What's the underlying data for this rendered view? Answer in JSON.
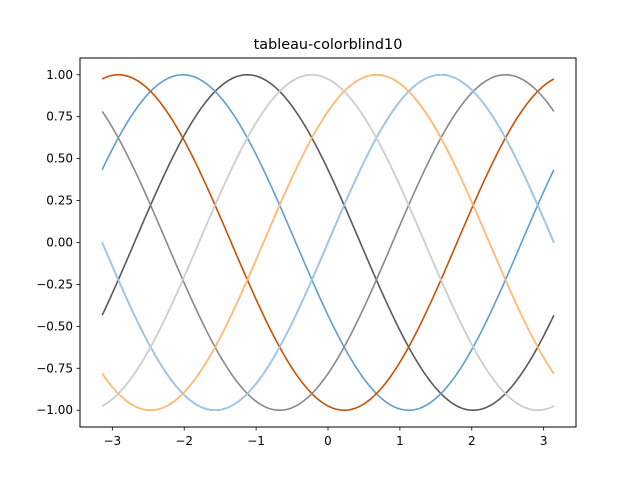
{
  "chart_data": {
    "type": "line",
    "title": "tableau-colorblind10",
    "xlabel": "",
    "ylabel": "",
    "xlim": [
      -3.45,
      3.45
    ],
    "ylim": [
      -1.1,
      1.1
    ],
    "xticks": [
      {
        "value": -3,
        "label": "−3"
      },
      {
        "value": -2,
        "label": "−2"
      },
      {
        "value": -1,
        "label": "−1"
      },
      {
        "value": 0,
        "label": "0"
      },
      {
        "value": 1,
        "label": "1"
      },
      {
        "value": 2,
        "label": "2"
      },
      {
        "value": 3,
        "label": "3"
      }
    ],
    "yticks": [
      {
        "value": -1.0,
        "label": "−1.00"
      },
      {
        "value": -0.75,
        "label": "−0.75"
      },
      {
        "value": -0.5,
        "label": "−0.50"
      },
      {
        "value": -0.25,
        "label": "−0.25"
      },
      {
        "value": 0.0,
        "label": "0.00"
      },
      {
        "value": 0.25,
        "label": "0.25"
      },
      {
        "value": 0.5,
        "label": "0.50"
      },
      {
        "value": 0.75,
        "label": "0.75"
      },
      {
        "value": 1.0,
        "label": "1.00"
      }
    ],
    "grid": false,
    "legend": false,
    "x_range": [
      -3.1416,
      3.1416
    ],
    "series": [
      {
        "function": "sin(x)",
        "color": "#006BA4"
      },
      {
        "function": "sin(x + 0.8976)",
        "color": "#FF800E"
      },
      {
        "function": "sin(x + 1.7952)",
        "color": "#ABABAB"
      },
      {
        "function": "sin(x + 2.6928)",
        "color": "#595959"
      },
      {
        "function": "sin(x + 3.5904)",
        "color": "#5F9ED1"
      },
      {
        "function": "sin(x + 4.4880)",
        "color": "#C85200"
      },
      {
        "function": "sin(x + 5.3856)",
        "color": "#898989"
      },
      {
        "function": "sin(x + 6.2832)",
        "color": "#A2C8EC"
      },
      {
        "function": "sin(x + 7.1808)",
        "color": "#FFBC79"
      },
      {
        "function": "sin(x + 8.0784)",
        "color": "#CFCFCF"
      }
    ],
    "series_samples": {
      "x": [
        -3.1416,
        -2.3562,
        -1.5708,
        -0.7854,
        0,
        0.7854,
        1.5708,
        2.3562,
        3.1416
      ],
      "note_free": true
    }
  }
}
